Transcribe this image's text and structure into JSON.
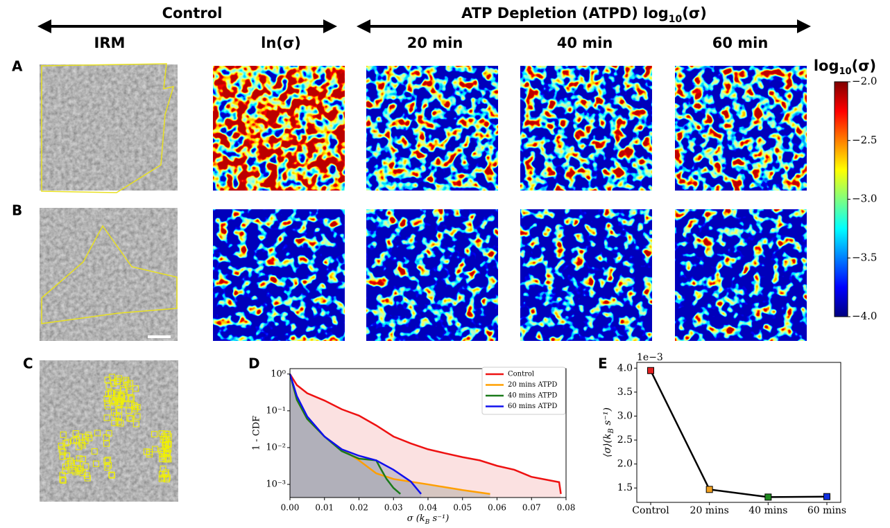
{
  "figure": {
    "group_headers": [
      "Control",
      [
        "ATP Depletion (ATPD) log",
        "10",
        "(σ)"
      ]
    ],
    "column_labels": [
      "IRM",
      "ln(σ)",
      "20 min",
      "40 min",
      "60 min"
    ],
    "panel_letters": [
      "A",
      "B",
      "C",
      "D",
      "E"
    ],
    "colorbar": {
      "title": [
        "log",
        "10",
        "(σ)"
      ],
      "lim": [
        -4,
        -2
      ],
      "ticks": [
        {
          "value": -2,
          "label": "−2.0"
        },
        {
          "value": -2.5,
          "label": "−2.5"
        },
        {
          "value": -3,
          "label": "−3.0"
        },
        {
          "value": -3.5,
          "label": "−3.5"
        },
        {
          "value": -4,
          "label": "−4.0"
        }
      ]
    }
  },
  "chart_data": [
    {
      "type": "line",
      "ylabel": "1 - CDF",
      "xlabel": [
        "σ  (k",
        "B",
        " s⁻¹)"
      ],
      "log_y": true,
      "fill_area": true,
      "legend": "upper right",
      "xlim": [
        0,
        0.08
      ],
      "ylim": [
        0.00044,
        1.4
      ],
      "xticks": [
        {
          "value": 0,
          "label": "0.00"
        },
        {
          "value": 0.01,
          "label": "0.01"
        },
        {
          "value": 0.02,
          "label": "0.02"
        },
        {
          "value": 0.03,
          "label": "0.03"
        },
        {
          "value": 0.04,
          "label": "0.04"
        },
        {
          "value": 0.05,
          "label": "0.05"
        },
        {
          "value": 0.06,
          "label": "0.06"
        },
        {
          "value": 0.07,
          "label": "0.07"
        },
        {
          "value": 0.08,
          "label": "0.08"
        }
      ],
      "yticks": [
        {
          "value": 0.001,
          "label": "10⁻³"
        },
        {
          "value": 0.01,
          "label": "10⁻²"
        },
        {
          "value": 0.1,
          "label": "10⁻¹"
        },
        {
          "value": 1,
          "label": "10⁰"
        }
      ],
      "series": [
        {
          "name": "Control",
          "color": "#ee1111",
          "area_color": "#f8c8c8",
          "x": [
            0,
            0.002,
            0.005,
            0.01,
            0.015,
            0.02,
            0.025,
            0.03,
            0.035,
            0.04,
            0.045,
            0.05,
            0.055,
            0.06,
            0.065,
            0.07,
            0.075,
            0.078,
            0.0785
          ],
          "values": [
            1,
            0.5,
            0.3,
            0.19,
            0.11,
            0.074,
            0.04,
            0.02,
            0.013,
            0.009,
            0.007,
            0.0055,
            0.0045,
            0.0032,
            0.0025,
            0.0016,
            0.0013,
            0.00115,
            0.00055
          ]
        },
        {
          "name": "20 mins ATPD",
          "color": "#ff9f00",
          "area_color": "#b8b0a8",
          "x": [
            0,
            0.002,
            0.005,
            0.01,
            0.015,
            0.02,
            0.025,
            0.03,
            0.04,
            0.05,
            0.058
          ],
          "values": [
            1,
            0.2,
            0.06,
            0.02,
            0.009,
            0.0045,
            0.002,
            0.0014,
            0.001,
            0.0007,
            0.00055
          ]
        },
        {
          "name": "40 mins ATPD",
          "color": "#1a7a1a",
          "area_color": "#a8b0a8",
          "x": [
            0,
            0.002,
            0.005,
            0.01,
            0.015,
            0.02,
            0.025,
            0.026,
            0.028,
            0.03,
            0.032
          ],
          "values": [
            1,
            0.2,
            0.06,
            0.02,
            0.008,
            0.005,
            0.0045,
            0.003,
            0.0014,
            0.0008,
            0.00055
          ]
        },
        {
          "name": "60 mins ATPD",
          "color": "#1010ee",
          "area_color": "#a8a8c0",
          "x": [
            0,
            0.002,
            0.005,
            0.01,
            0.015,
            0.02,
            0.025,
            0.03,
            0.035,
            0.038
          ],
          "values": [
            1,
            0.25,
            0.07,
            0.02,
            0.009,
            0.006,
            0.0045,
            0.0025,
            0.0012,
            0.00055
          ]
        }
      ]
    },
    {
      "type": "line",
      "categories": [
        "Control",
        "20 mins",
        "40 mins",
        "60 mins"
      ],
      "values": [
        3.95,
        1.47,
        1.31,
        1.32
      ],
      "point_colors": [
        "#e02020",
        "#f0a020",
        "#1f8a1f",
        "#1030e0"
      ],
      "color": "#000000",
      "offset_label": "1e−3",
      "ylabel": [
        "⟨σ⟩(k",
        "B",
        " s⁻¹)"
      ],
      "ylim": [
        1.2,
        4.12
      ],
      "yticks": [
        1.5,
        {
          "value": 2,
          "label": "2.0"
        },
        2.5,
        {
          "value": 3,
          "label": "3.0"
        },
        3.5,
        {
          "value": 4,
          "label": "4.0"
        }
      ]
    }
  ]
}
